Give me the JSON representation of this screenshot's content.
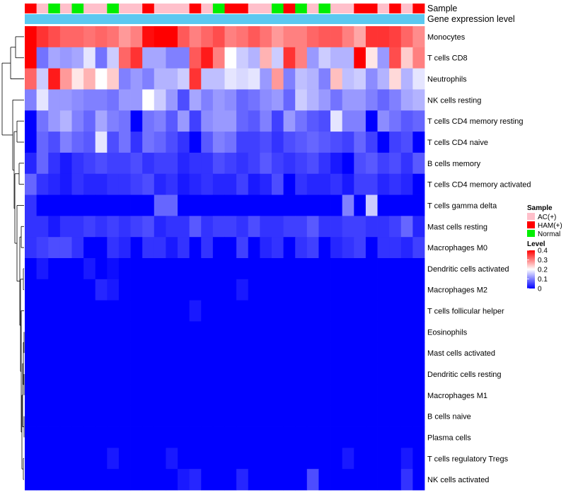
{
  "chart_data": {
    "type": "heatmap",
    "title": "",
    "annotation_rows": [
      "Sample",
      "Gene expression level"
    ],
    "row_labels": [
      "Monocytes",
      "T cells CD8",
      "Neutrophils",
      "NK cells resting",
      "T cells CD4 memory resting",
      "T cells CD4 naive",
      "B cells memory",
      "T cells CD4 memory activated",
      "T cells gamma delta",
      "Mast cells resting",
      "Macrophages M0",
      "Dendritic cells activated",
      "Macrophages M2",
      "T cells follicular helper",
      "Eosinophils",
      "Mast cells activated",
      "Dendritic cells resting",
      "Macrophages M1",
      "B cells naive",
      "Plasma cells",
      "T cells regulatory  Tregs",
      "NK cells activated"
    ],
    "sample_groups": [
      "HAM(+)",
      "AC(+)",
      "Normal",
      "AC(+)",
      "Normal",
      "AC(+)",
      "AC(+)",
      "Normal",
      "AC(+)",
      "AC(+)",
      "HAM(+)",
      "AC(+)",
      "AC(+)",
      "AC(+)",
      "HAM(+)",
      "AC(+)",
      "Normal",
      "HAM(+)",
      "HAM(+)",
      "AC(+)",
      "AC(+)",
      "Normal",
      "HAM(+)",
      "Normal",
      "AC(+)",
      "Normal",
      "AC(+)",
      "AC(+)",
      "HAM(+)",
      "HAM(+)",
      "AC(+)",
      "HAM(+)",
      "AC(+)",
      "HAM(+)"
    ],
    "row_means": [
      0.33,
      0.15,
      0.13,
      0.1,
      0.07,
      0.06,
      0.05,
      0.04,
      0.02,
      0.04,
      0.03,
      0.01,
      0.01,
      0.005,
      0.003,
      0.002,
      0.002,
      0.002,
      0.002,
      0.002,
      0.004,
      0.006
    ],
    "row_patterns": [
      [
        0.4,
        0.36,
        0.34,
        0.32,
        0.32,
        0.31,
        0.32,
        0.31,
        0.28,
        0.3,
        0.39,
        0.4,
        0.4,
        0.33,
        0.3,
        0.32,
        0.34,
        0.3,
        0.31,
        0.33,
        0.31,
        0.28,
        0.3,
        0.3,
        0.32,
        0.33,
        0.33,
        0.3,
        0.27,
        0.36,
        0.36,
        0.35,
        0.32,
        0.29
      ],
      [
        0.4,
        0.09,
        0.13,
        0.12,
        0.13,
        0.18,
        0.09,
        0.16,
        0.32,
        0.36,
        0.13,
        0.13,
        0.1,
        0.1,
        0.33,
        0.38,
        0.3,
        0.2,
        0.16,
        0.14,
        0.26,
        0.16,
        0.36,
        0.3,
        0.12,
        0.16,
        0.14,
        0.14,
        0.4,
        0.22,
        0.12,
        0.34,
        0.24,
        0.3
      ],
      [
        0.32,
        0.16,
        0.38,
        0.28,
        0.22,
        0.26,
        0.2,
        0.24,
        0.1,
        0.12,
        0.1,
        0.14,
        0.14,
        0.16,
        0.36,
        0.15,
        0.15,
        0.18,
        0.17,
        0.18,
        0.12,
        0.28,
        0.1,
        0.15,
        0.14,
        0.1,
        0.25,
        0.15,
        0.16,
        0.11,
        0.14,
        0.23,
        0.14,
        0.18
      ],
      [
        0.1,
        0.18,
        0.12,
        0.12,
        0.11,
        0.1,
        0.1,
        0.09,
        0.12,
        0.12,
        0.2,
        0.16,
        0.12,
        0.06,
        0.13,
        0.1,
        0.12,
        0.11,
        0.08,
        0.09,
        0.11,
        0.12,
        0.08,
        0.16,
        0.14,
        0.12,
        0.09,
        0.12,
        0.12,
        0.1,
        0.08,
        0.1,
        0.13,
        0.14
      ],
      [
        0.0,
        0.09,
        0.12,
        0.14,
        0.1,
        0.08,
        0.13,
        0.1,
        0.09,
        0.0,
        0.09,
        0.1,
        0.07,
        0.12,
        0.05,
        0.11,
        0.12,
        0.12,
        0.08,
        0.07,
        0.1,
        0.05,
        0.12,
        0.09,
        0.07,
        0.06,
        0.18,
        0.1,
        0.1,
        0.0,
        0.11,
        0.09,
        0.07,
        0.08
      ],
      [
        0.0,
        0.08,
        0.06,
        0.1,
        0.08,
        0.07,
        0.18,
        0.06,
        0.09,
        0.04,
        0.09,
        0.08,
        0.06,
        0.04,
        0.0,
        0.07,
        0.1,
        0.09,
        0.05,
        0.05,
        0.06,
        0.04,
        0.06,
        0.07,
        0.08,
        0.07,
        0.06,
        0.05,
        0.08,
        0.05,
        0.0,
        0.05,
        0.06,
        0.0
      ],
      [
        0.03,
        0.08,
        0.04,
        0.02,
        0.04,
        0.05,
        0.06,
        0.05,
        0.05,
        0.06,
        0.04,
        0.05,
        0.05,
        0.03,
        0.04,
        0.04,
        0.06,
        0.05,
        0.04,
        0.05,
        0.07,
        0.05,
        0.04,
        0.05,
        0.06,
        0.04,
        0.02,
        0.0,
        0.06,
        0.07,
        0.05,
        0.06,
        0.04,
        0.07
      ],
      [
        0.08,
        0.04,
        0.03,
        0.02,
        0.04,
        0.03,
        0.03,
        0.04,
        0.04,
        0.05,
        0.06,
        0.03,
        0.04,
        0.02,
        0.03,
        0.04,
        0.03,
        0.03,
        0.05,
        0.02,
        0.03,
        0.06,
        0.0,
        0.04,
        0.03,
        0.03,
        0.04,
        0.02,
        0.05,
        0.05,
        0.03,
        0.04,
        0.03,
        0.0
      ],
      [
        0.04,
        0.0,
        0.0,
        0.0,
        0.0,
        0.0,
        0.0,
        0.0,
        0.0,
        0.0,
        0.0,
        0.08,
        0.08,
        0.0,
        0.0,
        0.0,
        0.0,
        0.0,
        0.0,
        0.0,
        0.0,
        0.0,
        0.0,
        0.0,
        0.0,
        0.0,
        0.0,
        0.1,
        0.0,
        0.16,
        0.0,
        0.0,
        0.0,
        0.0
      ],
      [
        0.04,
        0.04,
        0.02,
        0.04,
        0.04,
        0.05,
        0.04,
        0.05,
        0.04,
        0.05,
        0.06,
        0.03,
        0.04,
        0.04,
        0.07,
        0.04,
        0.05,
        0.05,
        0.04,
        0.06,
        0.04,
        0.04,
        0.05,
        0.05,
        0.07,
        0.04,
        0.04,
        0.05,
        0.05,
        0.04,
        0.04,
        0.05,
        0.08,
        0.03
      ],
      [
        0.04,
        0.05,
        0.06,
        0.06,
        0.04,
        0.0,
        0.0,
        0.04,
        0.03,
        0.0,
        0.04,
        0.04,
        0.02,
        0.04,
        0.0,
        0.04,
        0.0,
        0.0,
        0.05,
        0.0,
        0.03,
        0.04,
        0.0,
        0.04,
        0.05,
        0.0,
        0.03,
        0.04,
        0.05,
        0.0,
        0.04,
        0.04,
        0.03,
        0.05
      ],
      [
        0.0,
        0.02,
        0.0,
        0.0,
        0.0,
        0.02,
        0.0,
        0.01,
        0.0,
        0.0,
        0.0,
        0.0,
        0.0,
        0.0,
        0.0,
        0.0,
        0.0,
        0.0,
        0.0,
        0.0,
        0.0,
        0.0,
        0.0,
        0.0,
        0.0,
        0.0,
        0.0,
        0.0,
        0.0,
        0.0,
        0.0,
        0.0,
        0.0,
        0.0
      ],
      [
        0.0,
        0.0,
        0.0,
        0.0,
        0.0,
        0.0,
        0.03,
        0.02,
        0.0,
        0.0,
        0.0,
        0.0,
        0.0,
        0.0,
        0.0,
        0.0,
        0.0,
        0.0,
        0.02,
        0.0,
        0.0,
        0.0,
        0.0,
        0.0,
        0.0,
        0.0,
        0.0,
        0.0,
        0.0,
        0.0,
        0.0,
        0.0,
        0.0,
        0.0
      ],
      [
        0.0,
        0.0,
        0.0,
        0.0,
        0.0,
        0.0,
        0.0,
        0.0,
        0.0,
        0.0,
        0.0,
        0.0,
        0.0,
        0.0,
        0.02,
        0.0,
        0.0,
        0.0,
        0.0,
        0.0,
        0.0,
        0.0,
        0.0,
        0.0,
        0.0,
        0.0,
        0.0,
        0.0,
        0.0,
        0.0,
        0.0,
        0.0,
        0.0,
        0.0
      ],
      [
        0.0,
        0.0,
        0.0,
        0.0,
        0.0,
        0.0,
        0.0,
        0.0,
        0.0,
        0.0,
        0.0,
        0.0,
        0.0,
        0.0,
        0.0,
        0.0,
        0.0,
        0.0,
        0.0,
        0.0,
        0.0,
        0.0,
        0.0,
        0.0,
        0.0,
        0.0,
        0.0,
        0.0,
        0.0,
        0.0,
        0.0,
        0.0,
        0.0,
        0.0
      ],
      [
        0.0,
        0.0,
        0.0,
        0.0,
        0.0,
        0.0,
        0.0,
        0.0,
        0.0,
        0.0,
        0.0,
        0.0,
        0.0,
        0.0,
        0.0,
        0.0,
        0.0,
        0.0,
        0.0,
        0.0,
        0.0,
        0.0,
        0.0,
        0.0,
        0.0,
        0.0,
        0.0,
        0.0,
        0.0,
        0.0,
        0.0,
        0.0,
        0.0,
        0.0
      ],
      [
        0.0,
        0.0,
        0.0,
        0.0,
        0.0,
        0.0,
        0.0,
        0.0,
        0.0,
        0.0,
        0.0,
        0.0,
        0.0,
        0.0,
        0.0,
        0.0,
        0.0,
        0.0,
        0.0,
        0.0,
        0.0,
        0.0,
        0.0,
        0.0,
        0.0,
        0.0,
        0.0,
        0.0,
        0.0,
        0.0,
        0.0,
        0.0,
        0.0,
        0.0
      ],
      [
        0.0,
        0.0,
        0.0,
        0.0,
        0.0,
        0.0,
        0.0,
        0.0,
        0.0,
        0.0,
        0.0,
        0.0,
        0.0,
        0.0,
        0.0,
        0.0,
        0.0,
        0.0,
        0.0,
        0.0,
        0.0,
        0.0,
        0.0,
        0.0,
        0.0,
        0.0,
        0.0,
        0.0,
        0.0,
        0.0,
        0.0,
        0.0,
        0.0,
        0.0
      ],
      [
        0.0,
        0.0,
        0.0,
        0.0,
        0.0,
        0.0,
        0.0,
        0.0,
        0.0,
        0.0,
        0.0,
        0.0,
        0.0,
        0.0,
        0.0,
        0.0,
        0.0,
        0.0,
        0.0,
        0.0,
        0.0,
        0.0,
        0.0,
        0.0,
        0.0,
        0.0,
        0.0,
        0.0,
        0.0,
        0.0,
        0.0,
        0.0,
        0.0,
        0.0
      ],
      [
        0.0,
        0.0,
        0.0,
        0.0,
        0.0,
        0.0,
        0.0,
        0.0,
        0.0,
        0.0,
        0.0,
        0.0,
        0.0,
        0.0,
        0.0,
        0.0,
        0.0,
        0.0,
        0.0,
        0.0,
        0.0,
        0.0,
        0.0,
        0.0,
        0.0,
        0.0,
        0.0,
        0.0,
        0.0,
        0.0,
        0.0,
        0.0,
        0.0,
        0.0
      ],
      [
        0.0,
        0.0,
        0.0,
        0.0,
        0.0,
        0.0,
        0.0,
        0.02,
        0.0,
        0.0,
        0.0,
        0.0,
        0.02,
        0.0,
        0.0,
        0.0,
        0.0,
        0.0,
        0.0,
        0.0,
        0.0,
        0.0,
        0.0,
        0.0,
        0.0,
        0.0,
        0.0,
        0.02,
        0.0,
        0.0,
        0.0,
        0.0,
        0.02,
        0.0
      ],
      [
        0.0,
        0.0,
        0.0,
        0.0,
        0.0,
        0.0,
        0.0,
        0.0,
        0.0,
        0.0,
        0.0,
        0.0,
        0.0,
        0.02,
        0.03,
        0.0,
        0.0,
        0.0,
        0.03,
        0.0,
        0.0,
        0.0,
        0.0,
        0.0,
        0.06,
        0.0,
        0.0,
        0.0,
        0.0,
        0.0,
        0.0,
        0.0,
        0.04,
        0.0
      ]
    ],
    "gene_expression_level_color": "#5bc8f0",
    "legend": {
      "sample_title": "Sample",
      "sample_entries": [
        {
          "label": "AC(+)",
          "color": "#ffc0cb"
        },
        {
          "label": "HAM(+)",
          "color": "#ff0000"
        },
        {
          "label": "Normal",
          "color": "#00ee00"
        }
      ],
      "level_title": "Level",
      "level_ticks": [
        "0.4",
        "0.3",
        "0.2",
        "0.1",
        "0"
      ],
      "level_range": [
        0,
        0.4
      ],
      "level_colors": {
        "low": "#0000ff",
        "mid": "#ffffff",
        "high": "#ff0000"
      }
    }
  }
}
